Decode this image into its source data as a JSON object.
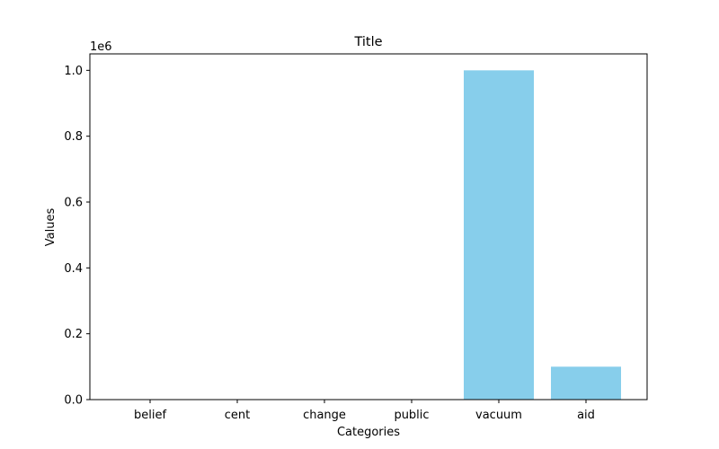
{
  "chart_data": {
    "type": "bar",
    "title": "Title",
    "xlabel": "Categories",
    "ylabel": "Values",
    "offset_label": "1e6",
    "categories": [
      "belief",
      "cent",
      "change",
      "public",
      "vacuum",
      "aid"
    ],
    "values": [
      10,
      10,
      1000,
      100,
      1000000,
      100000
    ],
    "ylim": [
      0,
      1050000
    ],
    "yticks": [
      0,
      200000,
      400000,
      600000,
      800000,
      1000000
    ],
    "ytick_labels": [
      "0.0",
      "0.2",
      "0.4",
      "0.6",
      "0.8",
      "1.0"
    ],
    "bar_color": "#87ceeb",
    "grid": false,
    "legend": false
  }
}
